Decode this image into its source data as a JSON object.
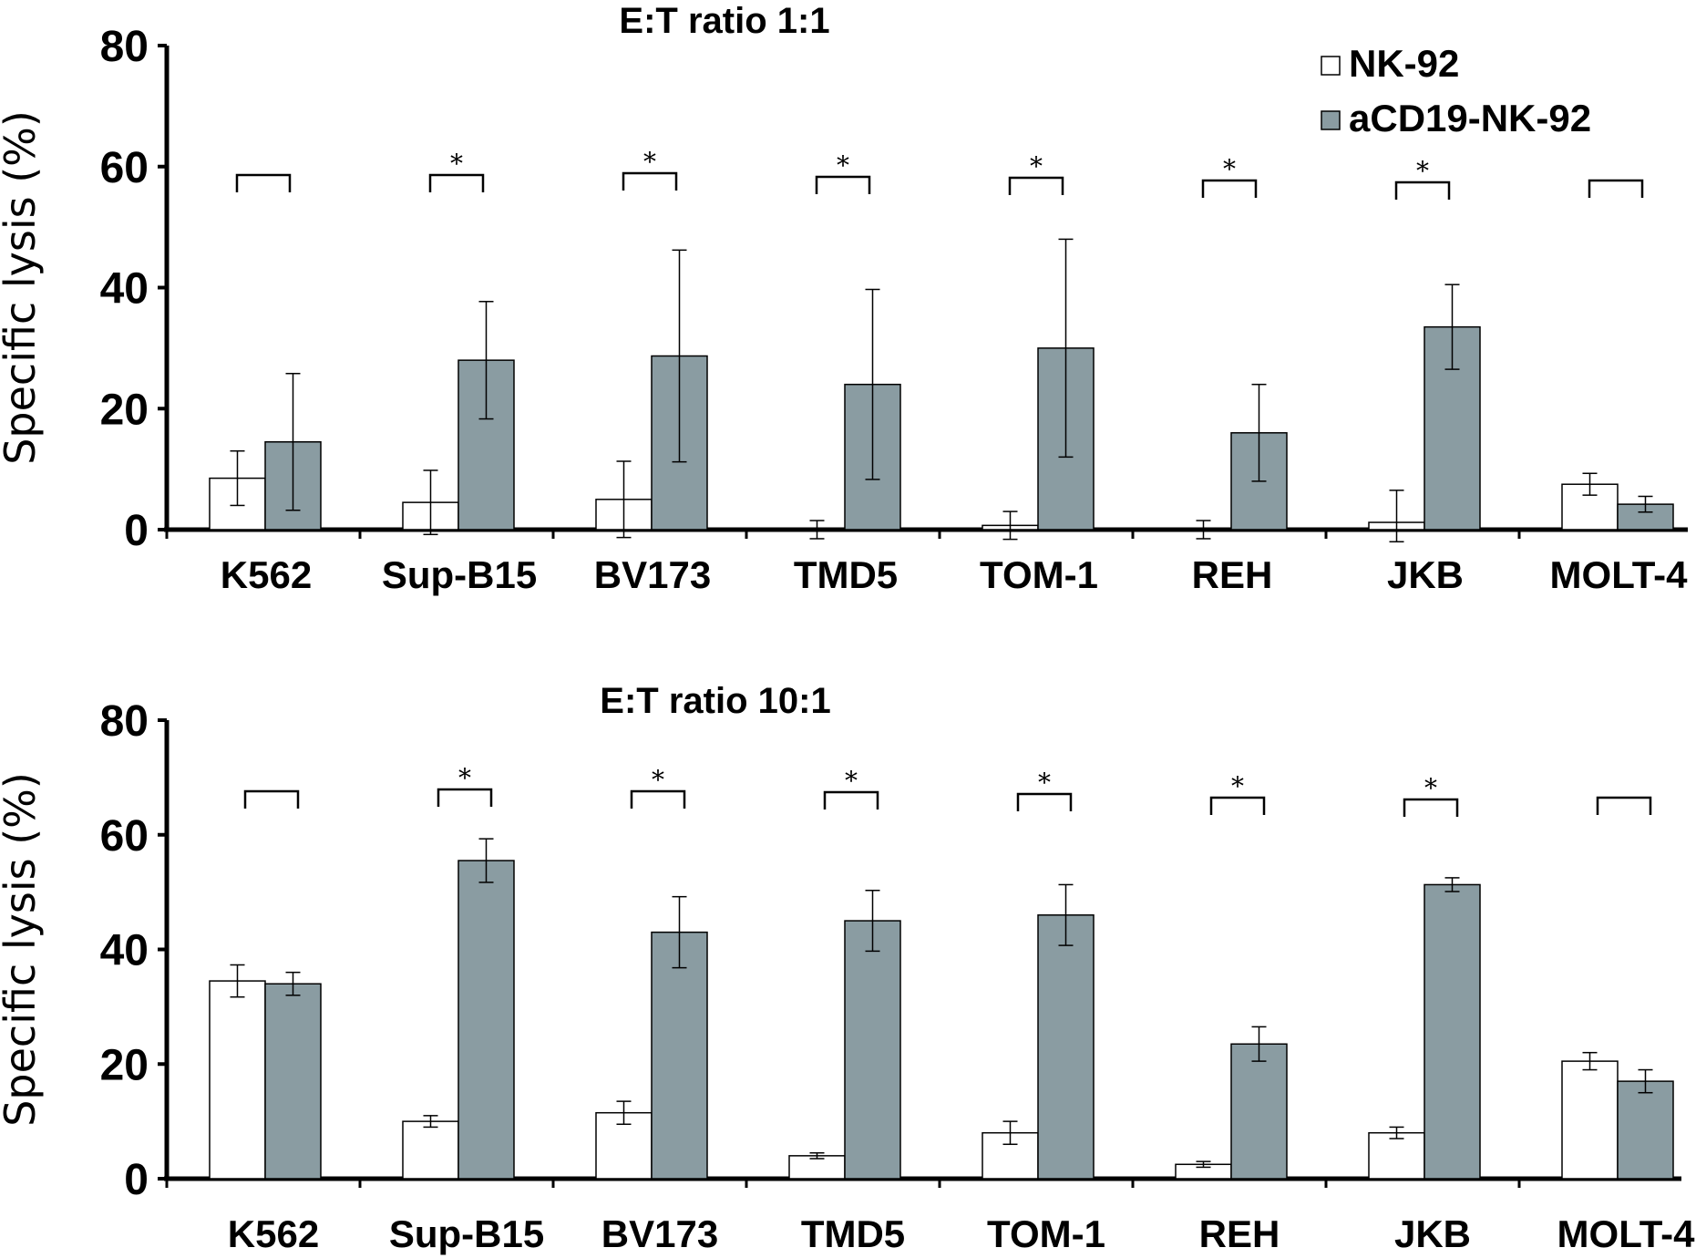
{
  "colors": {
    "nk92": "#ffffff",
    "acd19": "#8a9ca2",
    "stroke": "#000000"
  },
  "legend": [
    {
      "label": "NK-92",
      "color": "#ffffff"
    },
    {
      "label": "aCD19-NK-92",
      "color": "#8a9ca2"
    }
  ],
  "chart_data": [
    {
      "type": "bar",
      "title": "E:T ratio 1:1",
      "ylabel": "Specific lysis (%)",
      "ylim": [
        0,
        80
      ],
      "yticks": [
        0,
        20,
        40,
        60,
        80
      ],
      "legend_position": "top-right",
      "categories": [
        "K562",
        "Sup-B15",
        "BV173",
        "TMD5",
        "TOM-1",
        "REH",
        "JKB",
        "MOLT-4"
      ],
      "series": [
        {
          "name": "NK-92",
          "values": [
            8.5,
            4.5,
            5,
            0,
            0.7,
            0,
            1.2,
            7.5
          ],
          "errors": [
            4.5,
            5.3,
            6.3,
            1.5,
            2.3,
            1.5,
            5.3,
            1.8
          ]
        },
        {
          "name": "aCD19-NK-92",
          "values": [
            14.5,
            28,
            28.7,
            24,
            30,
            16,
            33.5,
            4.2
          ],
          "errors": [
            11.3,
            9.7,
            17.5,
            15.7,
            18,
            8,
            7,
            1.3
          ]
        }
      ],
      "significance": [
        {
          "category": "K562",
          "label": ""
        },
        {
          "category": "Sup-B15",
          "label": "*"
        },
        {
          "category": "BV173",
          "label": "*"
        },
        {
          "category": "TMD5",
          "label": "*"
        },
        {
          "category": "TOM-1",
          "label": "*"
        },
        {
          "category": "REH",
          "label": "*"
        },
        {
          "category": "JKB",
          "label": "*"
        },
        {
          "category": "MOLT-4",
          "label": ""
        }
      ]
    },
    {
      "type": "bar",
      "title": "E:T ratio 10:1",
      "ylabel": "Specific lysis (%)",
      "ylim": [
        0,
        80
      ],
      "yticks": [
        0,
        20,
        40,
        60,
        80
      ],
      "categories": [
        "K562",
        "Sup-B15",
        "BV173",
        "TMD5",
        "TOM-1",
        "REH",
        "JKB",
        "MOLT-4"
      ],
      "series": [
        {
          "name": "NK-92",
          "values": [
            34.5,
            10,
            11.5,
            4,
            8,
            2.5,
            8,
            20.5
          ],
          "errors": [
            2.8,
            1,
            2,
            0.5,
            2,
            0.5,
            1,
            1.5
          ]
        },
        {
          "name": "aCD19-NK-92",
          "values": [
            34,
            55.5,
            43,
            45,
            46,
            23.5,
            51.3,
            17
          ],
          "errors": [
            2,
            3.8,
            6.2,
            5.3,
            5.3,
            3,
            1.2,
            2
          ]
        }
      ],
      "significance": [
        {
          "category": "K562",
          "label": ""
        },
        {
          "category": "Sup-B15",
          "label": "*"
        },
        {
          "category": "BV173",
          "label": "*"
        },
        {
          "category": "TMD5",
          "label": "*"
        },
        {
          "category": "TOM-1",
          "label": "*"
        },
        {
          "category": "REH",
          "label": "*"
        },
        {
          "category": "JKB",
          "label": "*"
        },
        {
          "category": "MOLT-4",
          "label": ""
        }
      ]
    }
  ]
}
